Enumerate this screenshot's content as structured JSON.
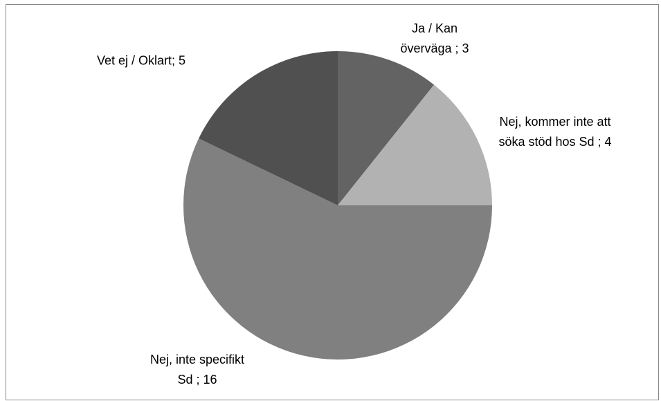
{
  "chart_data": {
    "type": "pie",
    "values": [
      3,
      4,
      16,
      5
    ],
    "value_labels": [
      "Ja / Kan överväga ; 3",
      "Nej, kommer inte att söka stöd hos Sd ; 4",
      "Nej, inte specifikt Sd ; 16",
      "Vet ej / Oklart; 5"
    ],
    "colors": [
      "#636363",
      "#b2b2b2",
      "#808080",
      "#505050"
    ]
  }
}
